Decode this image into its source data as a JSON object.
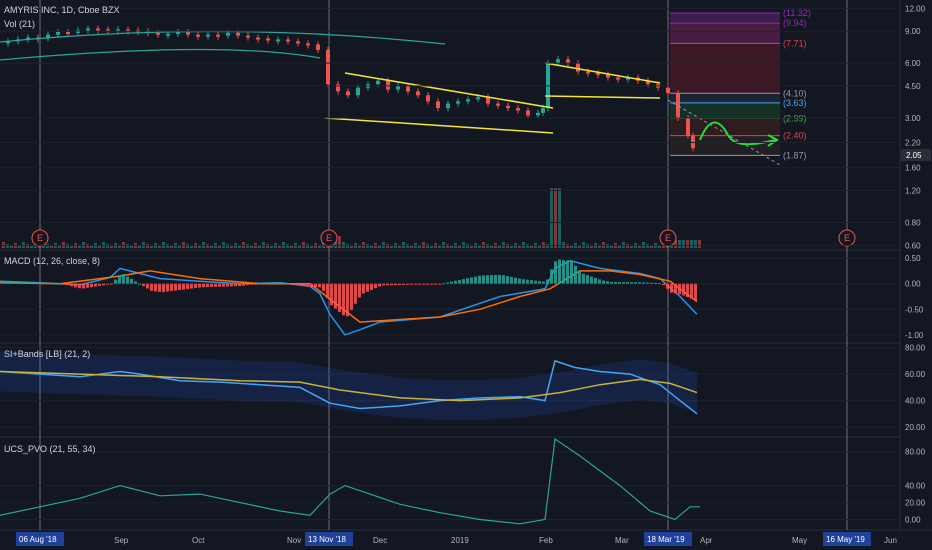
{
  "chart_data": {
    "type": "candlestick-with-indicators",
    "title": "AMYRIS INC, 1D, Cboe BZX",
    "volume_label": "Vol (21)",
    "last_price_label": "2.05",
    "price_axis_ticks": [
      "12.00",
      "9.00",
      "6.00",
      "4.50",
      "3.00",
      "2.20",
      "1.60",
      "1.20",
      "0.80",
      "0.60"
    ],
    "price_axis_values": [
      12.0,
      9.0,
      6.0,
      4.5,
      3.0,
      2.2,
      1.6,
      1.2,
      0.8,
      0.6
    ],
    "price_scale": "log",
    "price_range": [
      0.58,
      13.0
    ],
    "fib_levels": [
      {
        "label": "(11.32)",
        "value": 11.32,
        "color": "#9c27b0"
      },
      {
        "label": "(9.94)",
        "value": 9.94,
        "color": "#9c27b0"
      },
      {
        "label": "(7.71)",
        "value": 7.71,
        "color": "#e04050"
      },
      {
        "label": "(4.10)",
        "value": 4.1,
        "color": "#9598a1"
      },
      {
        "label": "(3.63)",
        "value": 3.63,
        "color": "#42a5f5"
      },
      {
        "label": "(2.99)",
        "value": 2.99,
        "color": "#4caf50"
      },
      {
        "label": "(2.40)",
        "value": 2.4,
        "color": "#e04050"
      },
      {
        "label": "(1.87)",
        "value": 1.87,
        "color": "#9598a1"
      }
    ],
    "earnings_marker": "E",
    "price_series": [
      [
        0,
        7.8
      ],
      [
        10,
        7.9
      ],
      [
        20,
        8.1
      ],
      [
        30,
        8.3
      ],
      [
        40,
        8.2
      ],
      [
        50,
        8.6
      ],
      [
        60,
        8.9
      ],
      [
        70,
        8.8
      ],
      [
        80,
        9.1
      ],
      [
        90,
        9.3
      ],
      [
        100,
        9.2
      ],
      [
        110,
        9.0
      ],
      [
        120,
        9.2
      ],
      [
        130,
        9.1
      ],
      [
        140,
        9.0
      ],
      [
        150,
        8.8
      ],
      [
        160,
        8.6
      ],
      [
        170,
        8.7
      ],
      [
        180,
        8.9
      ],
      [
        190,
        8.6
      ],
      [
        200,
        8.4
      ],
      [
        210,
        8.6
      ],
      [
        220,
        8.5
      ],
      [
        230,
        8.8
      ],
      [
        240,
        8.5
      ],
      [
        250,
        8.3
      ],
      [
        260,
        8.2
      ],
      [
        270,
        8.0
      ],
      [
        280,
        8.1
      ],
      [
        290,
        7.9
      ],
      [
        300,
        7.7
      ],
      [
        310,
        7.6
      ],
      [
        320,
        7.1
      ],
      [
        330,
        4.6
      ],
      [
        340,
        4.2
      ],
      [
        350,
        4.0
      ],
      [
        360,
        4.4
      ],
      [
        370,
        4.6
      ],
      [
        380,
        4.8
      ],
      [
        390,
        4.3
      ],
      [
        400,
        4.5
      ],
      [
        410,
        4.2
      ],
      [
        420,
        4.0
      ],
      [
        430,
        3.7
      ],
      [
        440,
        3.4
      ],
      [
        450,
        3.6
      ],
      [
        460,
        3.7
      ],
      [
        470,
        3.8
      ],
      [
        480,
        3.9
      ],
      [
        490,
        3.6
      ],
      [
        500,
        3.5
      ],
      [
        510,
        3.4
      ],
      [
        520,
        3.3
      ],
      [
        530,
        3.1
      ],
      [
        540,
        3.2
      ],
      [
        545,
        3.4
      ],
      [
        550,
        6.0
      ],
      [
        560,
        6.3
      ],
      [
        570,
        6.0
      ],
      [
        580,
        5.4
      ],
      [
        590,
        5.3
      ],
      [
        600,
        5.2
      ],
      [
        610,
        5.0
      ],
      [
        620,
        4.9
      ],
      [
        630,
        5.0
      ],
      [
        640,
        4.8
      ],
      [
        650,
        4.6
      ],
      [
        660,
        4.4
      ],
      [
        670,
        4.1
      ],
      [
        680,
        3.0
      ],
      [
        690,
        2.4
      ],
      [
        695,
        2.05
      ]
    ],
    "macd": {
      "label": "MACD (12, 26, close, 8)",
      "ticks": [
        "0.50",
        "0.00",
        "-0.50",
        "-1.00"
      ],
      "tick_values": [
        0.5,
        0.0,
        -0.5,
        -1.0
      ],
      "range": [
        -1.12,
        0.62
      ],
      "macd_line": [
        [
          0,
          0.05
        ],
        [
          40,
          0.02
        ],
        [
          80,
          -0.02
        ],
        [
          110,
          0.12
        ],
        [
          120,
          0.3
        ],
        [
          140,
          0.2
        ],
        [
          160,
          0.1
        ],
        [
          200,
          0.05
        ],
        [
          240,
          0.0
        ],
        [
          280,
          0.02
        ],
        [
          310,
          -0.05
        ],
        [
          320,
          -0.2
        ],
        [
          330,
          -0.6
        ],
        [
          345,
          -1.0
        ],
        [
          360,
          -0.9
        ],
        [
          380,
          -0.75
        ],
        [
          410,
          -0.7
        ],
        [
          440,
          -0.65
        ],
        [
          470,
          -0.45
        ],
        [
          500,
          -0.25
        ],
        [
          530,
          -0.15
        ],
        [
          545,
          -0.1
        ],
        [
          555,
          0.3
        ],
        [
          570,
          0.45
        ],
        [
          600,
          0.3
        ],
        [
          640,
          0.2
        ],
        [
          660,
          0.1
        ],
        [
          680,
          -0.25
        ],
        [
          697,
          -0.6
        ]
      ],
      "signal_line": [
        [
          0,
          0.02
        ],
        [
          60,
          0.0
        ],
        [
          120,
          0.15
        ],
        [
          150,
          0.25
        ],
        [
          200,
          0.1
        ],
        [
          260,
          0.0
        ],
        [
          310,
          0.0
        ],
        [
          330,
          -0.3
        ],
        [
          360,
          -0.75
        ],
        [
          400,
          -0.7
        ],
        [
          440,
          -0.65
        ],
        [
          480,
          -0.5
        ],
        [
          520,
          -0.25
        ],
        [
          550,
          -0.1
        ],
        [
          580,
          0.25
        ],
        [
          610,
          0.25
        ],
        [
          640,
          0.18
        ],
        [
          670,
          0.05
        ],
        [
          697,
          -0.35
        ]
      ]
    },
    "si_bands": {
      "label": "SI+Bands [LB] (21, 2)",
      "ticks": [
        "80.00",
        "60.00",
        "40.00",
        "20.00"
      ],
      "tick_values": [
        80,
        60,
        40,
        20
      ],
      "range": [
        14,
        82
      ],
      "si_line": [
        [
          0,
          62
        ],
        [
          40,
          60
        ],
        [
          80,
          58
        ],
        [
          120,
          62
        ],
        [
          140,
          60
        ],
        [
          180,
          55
        ],
        [
          220,
          54
        ],
        [
          260,
          52
        ],
        [
          300,
          50
        ],
        [
          330,
          38
        ],
        [
          360,
          34
        ],
        [
          400,
          36
        ],
        [
          440,
          40
        ],
        [
          480,
          42
        ],
        [
          520,
          43
        ],
        [
          545,
          40
        ],
        [
          555,
          70
        ],
        [
          575,
          65
        ],
        [
          600,
          62
        ],
        [
          630,
          60
        ],
        [
          660,
          52
        ],
        [
          680,
          40
        ],
        [
          697,
          30
        ]
      ],
      "mid_line": [
        [
          0,
          62
        ],
        [
          80,
          60
        ],
        [
          160,
          58
        ],
        [
          240,
          55
        ],
        [
          300,
          54
        ],
        [
          340,
          48
        ],
        [
          400,
          42
        ],
        [
          460,
          40
        ],
        [
          520,
          42
        ],
        [
          560,
          46
        ],
        [
          600,
          52
        ],
        [
          640,
          56
        ],
        [
          670,
          53
        ],
        [
          697,
          46
        ]
      ]
    },
    "ucs_pvo": {
      "label": "UCS_PVO (21, 55, 34)",
      "ticks": [
        "80.00",
        "40.00",
        "20.00",
        "0.00"
      ],
      "tick_values": [
        80,
        40,
        20,
        0
      ],
      "range": [
        -10,
        95
      ],
      "line": [
        [
          0,
          5
        ],
        [
          40,
          15
        ],
        [
          80,
          25
        ],
        [
          120,
          40
        ],
        [
          160,
          28
        ],
        [
          200,
          30
        ],
        [
          240,
          20
        ],
        [
          280,
          10
        ],
        [
          310,
          5
        ],
        [
          330,
          30
        ],
        [
          345,
          40
        ],
        [
          370,
          30
        ],
        [
          400,
          18
        ],
        [
          440,
          8
        ],
        [
          480,
          0
        ],
        [
          520,
          -5
        ],
        [
          545,
          0
        ],
        [
          555,
          95
        ],
        [
          580,
          75
        ],
        [
          620,
          40
        ],
        [
          650,
          10
        ],
        [
          675,
          0
        ],
        [
          690,
          15
        ],
        [
          700,
          15
        ]
      ]
    },
    "date_labels": [
      "Sep",
      "Oct",
      "Nov",
      "Dec",
      "2019",
      "Feb",
      "Mar",
      "Apr",
      "May",
      "Jun"
    ],
    "date_label_positions": [
      122,
      200,
      295,
      381,
      459,
      547,
      623,
      708,
      800,
      892
    ],
    "highlighted_dates": [
      "06 Aug '18",
      "13 Nov '18",
      "18 Mar '19",
      "16 May '19"
    ],
    "highlighted_date_positions": [
      40,
      329,
      668,
      847
    ]
  }
}
